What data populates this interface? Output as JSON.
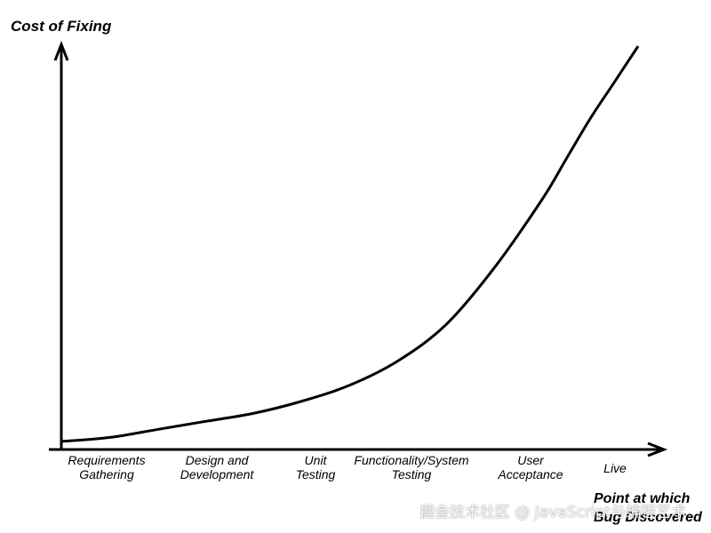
{
  "chart_data": {
    "type": "line",
    "title": "",
    "ylabel": "Cost of Fixing",
    "xlabel_lines": [
      "Point at which",
      "Bug Discovered"
    ],
    "categories": [
      [
        "Requirements",
        "Gathering"
      ],
      [
        "Design and",
        "Development"
      ],
      [
        "Unit",
        "Testing"
      ],
      [
        "Functionality/System",
        "Testing"
      ],
      [
        "User",
        "Acceptance"
      ],
      [
        "Live"
      ]
    ],
    "x": [
      0,
      0.5,
      1,
      1.5,
      2,
      2.5,
      3,
      3.5,
      4,
      4.5,
      5,
      5.25,
      5.5,
      5.75,
      6
    ],
    "values": [
      0.02,
      0.03,
      0.05,
      0.07,
      0.09,
      0.12,
      0.16,
      0.22,
      0.31,
      0.45,
      0.62,
      0.72,
      0.82,
      0.91,
      1.0
    ],
    "xlim": [
      0,
      6
    ],
    "ylim": [
      0,
      1
    ],
    "grid": false,
    "legend": "none",
    "line_color": "#000000"
  },
  "watermark": "掘金技术社区 @ JavaScript与编程艺术"
}
